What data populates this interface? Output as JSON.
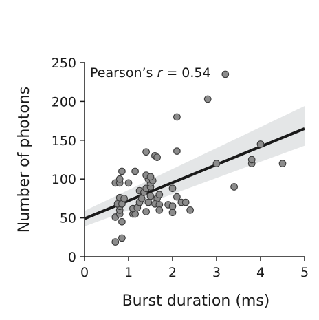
{
  "chart_data": {
    "type": "scatter",
    "xlabel": "Burst duration (ms)",
    "ylabel": "Number of photons",
    "xlim": [
      0,
      5
    ],
    "ylim": [
      0,
      250
    ],
    "xticks": [
      "0",
      "1",
      "2",
      "3",
      "4",
      "5"
    ],
    "yticks": [
      "0",
      "50",
      "100",
      "150",
      "200",
      "250"
    ],
    "annotation": {
      "prefix": "Pearson’s ",
      "symbol": "r",
      "suffix": " = 0.54"
    },
    "regression": {
      "intercept": 49,
      "slope": 23.2,
      "ci_at_x0": [
        39,
        59
      ],
      "ci_at_x5": [
        143,
        194
      ],
      "ci_fill_color": "#e4e6e7",
      "line_color": "#1a1a1a"
    },
    "point_color": "#8c8c8c",
    "point_edge_color": "#3a3a3a",
    "points": [
      [
        0.7,
        19
      ],
      [
        0.85,
        24
      ],
      [
        0.7,
        51
      ],
      [
        0.85,
        45
      ],
      [
        0.8,
        55
      ],
      [
        0.8,
        60
      ],
      [
        0.8,
        65
      ],
      [
        0.75,
        68
      ],
      [
        0.85,
        68
      ],
      [
        0.8,
        76
      ],
      [
        0.9,
        75
      ],
      [
        0.7,
        95
      ],
      [
        0.8,
        95
      ],
      [
        0.8,
        100
      ],
      [
        0.85,
        110
      ],
      [
        1.0,
        95
      ],
      [
        1.1,
        55
      ],
      [
        1.15,
        55
      ],
      [
        1.1,
        62
      ],
      [
        1.2,
        63
      ],
      [
        1.25,
        70
      ],
      [
        1.3,
        75
      ],
      [
        1.25,
        85
      ],
      [
        1.35,
        83
      ],
      [
        1.15,
        110
      ],
      [
        1.4,
        58
      ],
      [
        1.45,
        70
      ],
      [
        1.5,
        78
      ],
      [
        1.4,
        88
      ],
      [
        1.5,
        90
      ],
      [
        1.5,
        95
      ],
      [
        1.45,
        100
      ],
      [
        1.55,
        98
      ],
      [
        1.4,
        105
      ],
      [
        1.5,
        103
      ],
      [
        1.4,
        135
      ],
      [
        1.6,
        130
      ],
      [
        1.65,
        128
      ],
      [
        1.65,
        75
      ],
      [
        1.6,
        68
      ],
      [
        1.7,
        67
      ],
      [
        1.7,
        80
      ],
      [
        1.7,
        60
      ],
      [
        1.9,
        67
      ],
      [
        2.0,
        57
      ],
      [
        2.0,
        65
      ],
      [
        2.0,
        88
      ],
      [
        2.1,
        77
      ],
      [
        2.2,
        70
      ],
      [
        2.3,
        70
      ],
      [
        2.4,
        60
      ],
      [
        2.1,
        136
      ],
      [
        2.1,
        180
      ],
      [
        2.8,
        203
      ],
      [
        3.0,
        120
      ],
      [
        3.2,
        235
      ],
      [
        3.4,
        90
      ],
      [
        3.8,
        120
      ],
      [
        3.8,
        125
      ],
      [
        4.0,
        145
      ],
      [
        4.5,
        120
      ]
    ]
  }
}
